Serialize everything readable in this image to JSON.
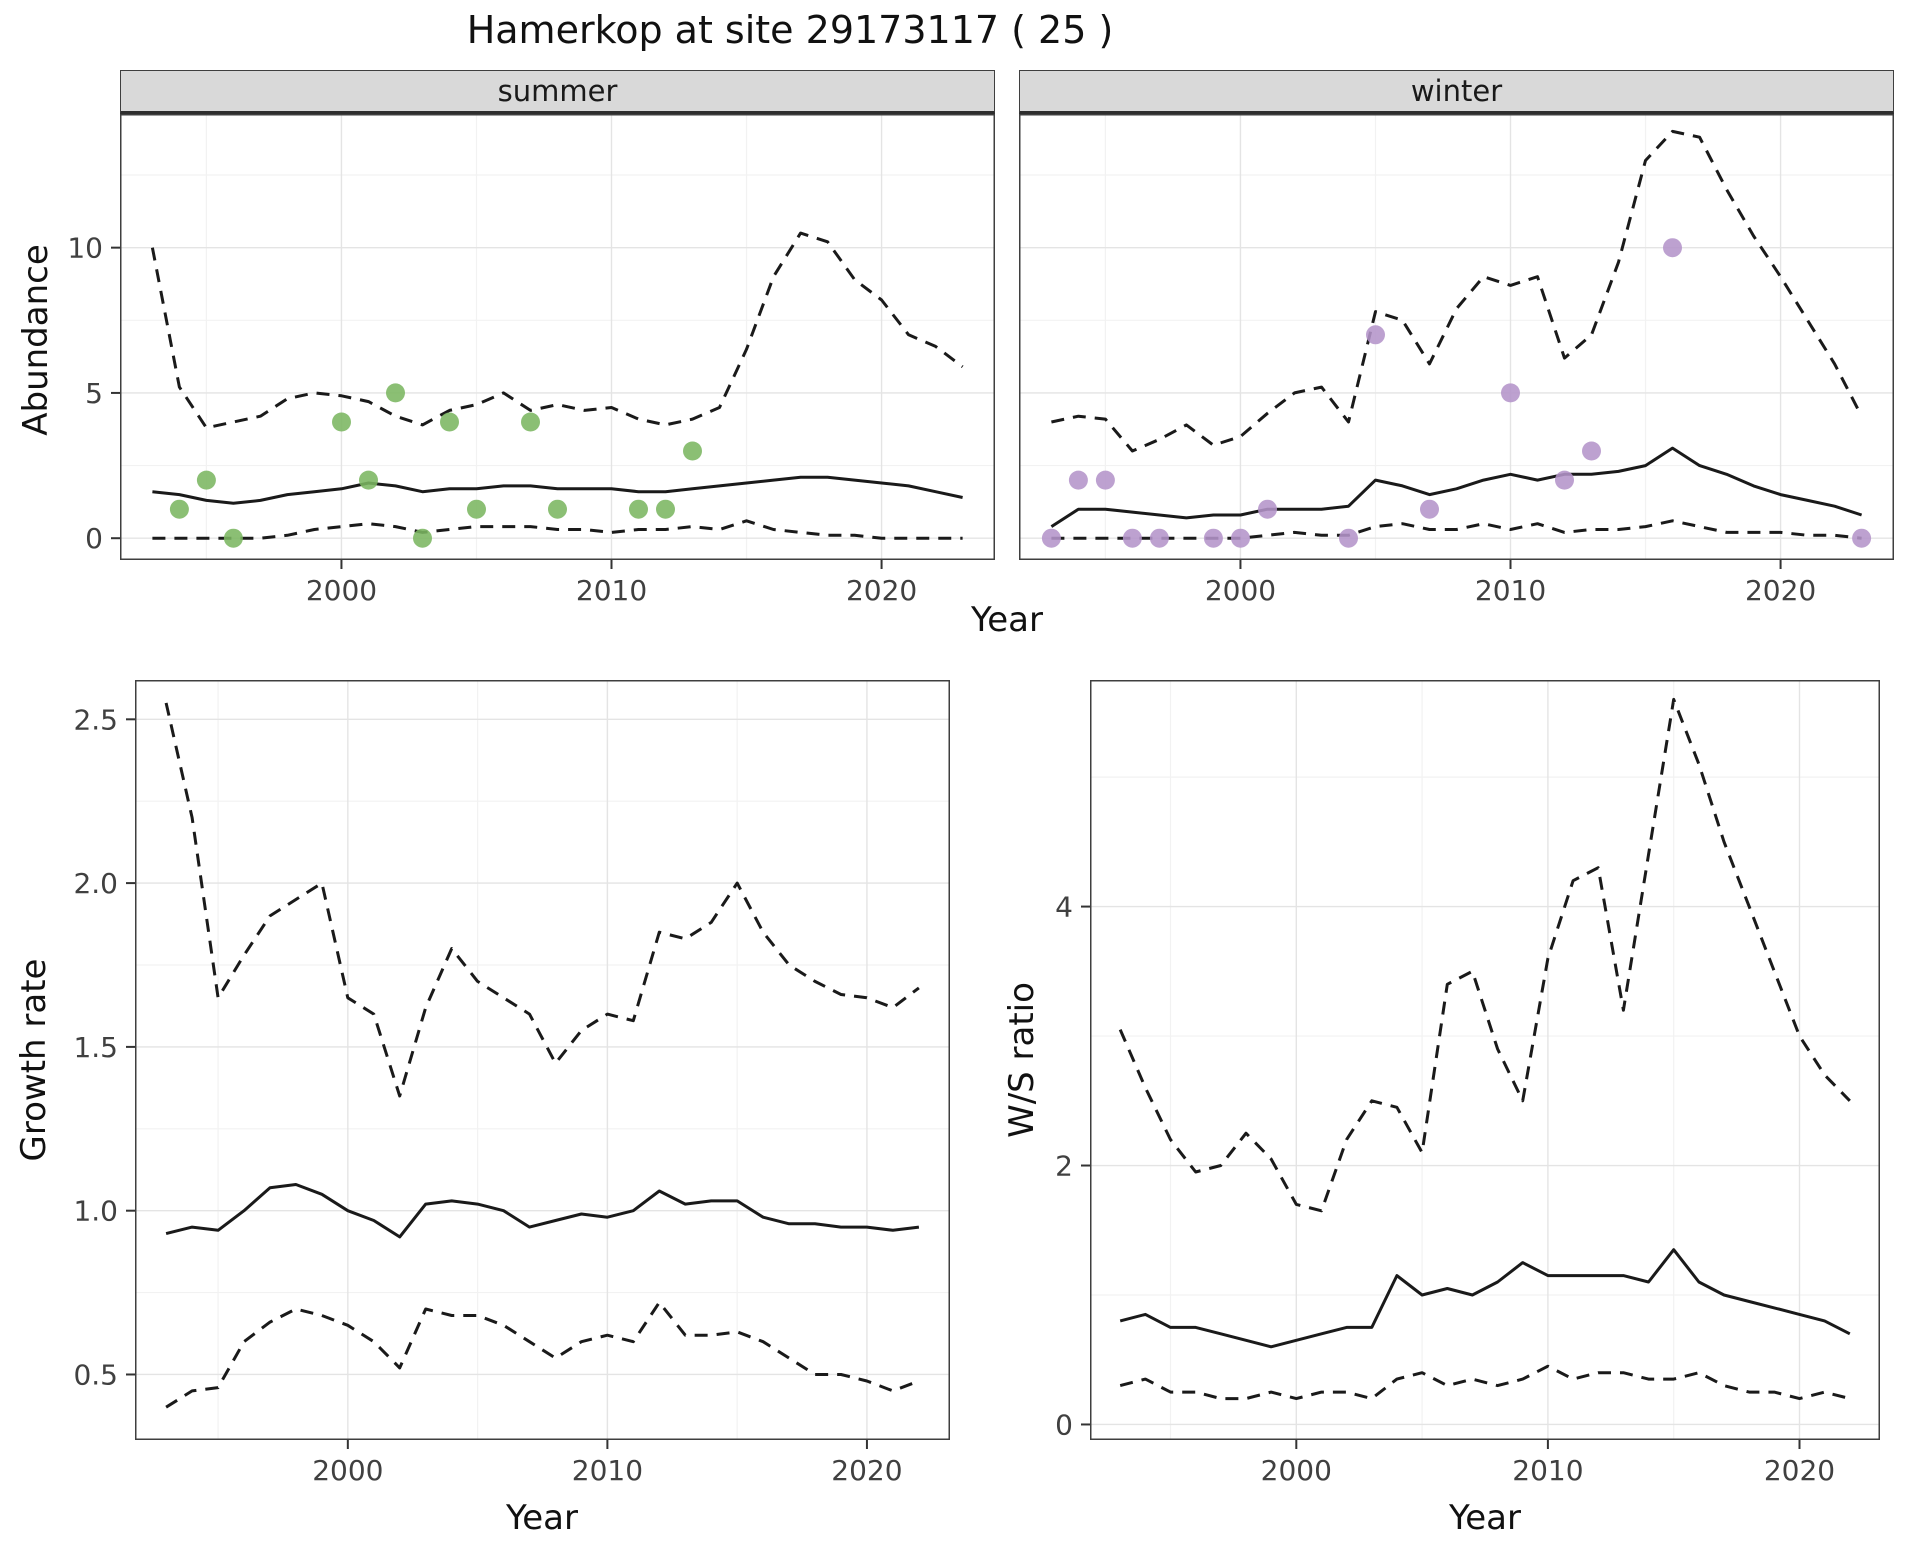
{
  "title": "Hamerkop at site 29173117 ( 25 )",
  "chart_data": [
    {
      "id": "abundance-summer",
      "type": "line",
      "facet": "summer",
      "xlabel": "Year",
      "ylabel": "Abundance",
      "xlim": [
        1991.8,
        2024.2
      ],
      "ylim": [
        -0.75,
        14.6
      ],
      "xticks": [
        2000,
        2010,
        2020
      ],
      "xticklabels": [
        "2000",
        "2010",
        "2020"
      ],
      "yticks": [
        0,
        5,
        10
      ],
      "yticklabels": [
        "0",
        "5",
        "10"
      ],
      "line_color": "#1a1a1a",
      "x": [
        1993,
        1994,
        1995,
        1996,
        1997,
        1998,
        1999,
        2000,
        2001,
        2002,
        2003,
        2004,
        2005,
        2006,
        2007,
        2008,
        2009,
        2010,
        2011,
        2012,
        2013,
        2014,
        2015,
        2016,
        2017,
        2018,
        2019,
        2020,
        2021,
        2022,
        2023
      ],
      "series": [
        {
          "name": "median",
          "style": "solid",
          "values": [
            1.6,
            1.5,
            1.3,
            1.2,
            1.3,
            1.5,
            1.6,
            1.7,
            1.9,
            1.8,
            1.6,
            1.7,
            1.7,
            1.8,
            1.8,
            1.7,
            1.7,
            1.7,
            1.6,
            1.6,
            1.7,
            1.8,
            1.9,
            2.0,
            2.1,
            2.1,
            2.0,
            1.9,
            1.8,
            1.6,
            1.4
          ]
        },
        {
          "name": "upper-ci",
          "style": "dashed",
          "values": [
            10.0,
            5.2,
            3.8,
            4.0,
            4.2,
            4.8,
            5.0,
            4.9,
            4.7,
            4.2,
            3.9,
            4.4,
            4.6,
            5.0,
            4.4,
            4.6,
            4.4,
            4.5,
            4.1,
            3.9,
            4.1,
            4.5,
            6.5,
            9.0,
            10.5,
            10.2,
            8.9,
            8.2,
            7.0,
            6.6,
            5.9
          ]
        },
        {
          "name": "lower-ci",
          "style": "dashed",
          "values": [
            0,
            0,
            0,
            0,
            0,
            0.1,
            0.3,
            0.4,
            0.5,
            0.4,
            0.2,
            0.3,
            0.4,
            0.4,
            0.4,
            0.3,
            0.3,
            0.2,
            0.3,
            0.3,
            0.4,
            0.3,
            0.6,
            0.3,
            0.2,
            0.1,
            0.1,
            0,
            0,
            0,
            0
          ]
        }
      ],
      "points": {
        "name": "observed-counts-summer",
        "color": "#7bb661",
        "x": [
          1994,
          1995,
          1996,
          2000,
          2001,
          2002,
          2003,
          2004,
          2005,
          2007,
          2008,
          2011,
          2012,
          2013
        ],
        "y": [
          1,
          2,
          0,
          4,
          2,
          5,
          0,
          4,
          1,
          4,
          1,
          1,
          1,
          3
        ]
      }
    },
    {
      "id": "abundance-winter",
      "type": "line",
      "facet": "winter",
      "xlabel": "Year",
      "ylabel": "Abundance",
      "xlim": [
        1991.8,
        2024.2
      ],
      "ylim": [
        -0.75,
        14.6
      ],
      "xticks": [
        2000,
        2010,
        2020
      ],
      "xticklabels": [
        "2000",
        "2010",
        "2020"
      ],
      "yticks": [
        0,
        5,
        10
      ],
      "yticklabels": [
        "0",
        "5",
        "10"
      ],
      "line_color": "#1a1a1a",
      "x": [
        1993,
        1994,
        1995,
        1996,
        1997,
        1998,
        1999,
        2000,
        2001,
        2002,
        2003,
        2004,
        2005,
        2006,
        2007,
        2008,
        2009,
        2010,
        2011,
        2012,
        2013,
        2014,
        2015,
        2016,
        2017,
        2018,
        2019,
        2020,
        2021,
        2022,
        2023
      ],
      "series": [
        {
          "name": "median",
          "style": "solid",
          "values": [
            0.4,
            1.0,
            1.0,
            0.9,
            0.8,
            0.7,
            0.8,
            0.8,
            1.0,
            1.0,
            1.0,
            1.1,
            2.0,
            1.8,
            1.5,
            1.7,
            2.0,
            2.2,
            2.0,
            2.2,
            2.2,
            2.3,
            2.5,
            3.1,
            2.5,
            2.2,
            1.8,
            1.5,
            1.3,
            1.1,
            0.8
          ]
        },
        {
          "name": "upper-ci",
          "style": "dashed",
          "values": [
            4.0,
            4.2,
            4.1,
            3.0,
            3.4,
            3.9,
            3.2,
            3.5,
            4.3,
            5.0,
            5.2,
            4.0,
            7.8,
            7.5,
            6.0,
            7.9,
            9.0,
            8.7,
            9.0,
            6.2,
            7.0,
            9.5,
            13.0,
            14.0,
            13.8,
            12.0,
            10.4,
            9.0,
            7.5,
            6.0,
            4.2
          ]
        },
        {
          "name": "lower-ci",
          "style": "dashed",
          "values": [
            0,
            0,
            0,
            0,
            0,
            0,
            0,
            0,
            0.1,
            0.2,
            0.1,
            0.1,
            0.4,
            0.5,
            0.3,
            0.3,
            0.5,
            0.3,
            0.5,
            0.2,
            0.3,
            0.3,
            0.4,
            0.6,
            0.4,
            0.2,
            0.2,
            0.2,
            0.1,
            0.1,
            0
          ]
        }
      ],
      "points": {
        "name": "observed-counts-winter",
        "color": "#b494c9",
        "x": [
          1993,
          1994,
          1995,
          1996,
          1997,
          1999,
          2000,
          2001,
          2004,
          2005,
          2007,
          2010,
          2012,
          2013,
          2016,
          2023
        ],
        "y": [
          0,
          2,
          2,
          0,
          0,
          0,
          0,
          1,
          0,
          7,
          1,
          5,
          2,
          3,
          10,
          0
        ]
      }
    },
    {
      "id": "growth-rate",
      "type": "line",
      "facet": "",
      "xlabel": "Year",
      "ylabel": "Growth rate",
      "xlim": [
        1991.8,
        2023.2
      ],
      "ylim": [
        0.3,
        2.62
      ],
      "xticks": [
        2000,
        2010,
        2020
      ],
      "xticklabels": [
        "2000",
        "2010",
        "2020"
      ],
      "yticks": [
        0.5,
        1.0,
        1.5,
        2.0,
        2.5
      ],
      "yticklabels": [
        "0.5",
        "1.0",
        "1.5",
        "2.0",
        "2.5"
      ],
      "line_color": "#1a1a1a",
      "x": [
        1993,
        1994,
        1995,
        1996,
        1997,
        1998,
        1999,
        2000,
        2001,
        2002,
        2003,
        2004,
        2005,
        2006,
        2007,
        2008,
        2009,
        2010,
        2011,
        2012,
        2013,
        2014,
        2015,
        2016,
        2017,
        2018,
        2019,
        2020,
        2021,
        2022
      ],
      "series": [
        {
          "name": "median",
          "style": "solid",
          "values": [
            0.93,
            0.95,
            0.94,
            1.0,
            1.07,
            1.08,
            1.05,
            1.0,
            0.97,
            0.92,
            1.02,
            1.03,
            1.02,
            1.0,
            0.95,
            0.97,
            0.99,
            0.98,
            1.0,
            1.06,
            1.02,
            1.03,
            1.03,
            0.98,
            0.96,
            0.96,
            0.95,
            0.95,
            0.94,
            0.95
          ]
        },
        {
          "name": "upper-ci",
          "style": "dashed",
          "values": [
            2.55,
            2.2,
            1.65,
            1.78,
            1.9,
            1.95,
            2.0,
            1.65,
            1.6,
            1.35,
            1.62,
            1.8,
            1.7,
            1.65,
            1.6,
            1.45,
            1.55,
            1.6,
            1.58,
            1.85,
            1.83,
            1.88,
            2.0,
            1.85,
            1.75,
            1.7,
            1.66,
            1.65,
            1.62,
            1.68
          ]
        },
        {
          "name": "lower-ci",
          "style": "dashed",
          "values": [
            0.4,
            0.45,
            0.46,
            0.6,
            0.66,
            0.7,
            0.68,
            0.65,
            0.6,
            0.52,
            0.7,
            0.68,
            0.68,
            0.65,
            0.6,
            0.55,
            0.6,
            0.62,
            0.6,
            0.72,
            0.62,
            0.62,
            0.63,
            0.6,
            0.55,
            0.5,
            0.5,
            0.48,
            0.45,
            0.48
          ]
        }
      ]
    },
    {
      "id": "ws-ratio",
      "type": "line",
      "facet": "",
      "xlabel": "Year",
      "ylabel": "W/S ratio",
      "xlim": [
        1991.8,
        2023.2
      ],
      "ylim": [
        -0.12,
        5.75
      ],
      "xticks": [
        2000,
        2010,
        2020
      ],
      "xticklabels": [
        "2000",
        "2010",
        "2020"
      ],
      "yticks": [
        0,
        2,
        4
      ],
      "yticklabels": [
        "0",
        "2",
        "4"
      ],
      "line_color": "#1a1a1a",
      "x": [
        1993,
        1994,
        1995,
        1996,
        1997,
        1998,
        1999,
        2000,
        2001,
        2002,
        2003,
        2004,
        2005,
        2006,
        2007,
        2008,
        2009,
        2010,
        2011,
        2012,
        2013,
        2014,
        2015,
        2016,
        2017,
        2018,
        2019,
        2020,
        2021,
        2022
      ],
      "series": [
        {
          "name": "median",
          "style": "solid",
          "values": [
            0.8,
            0.85,
            0.75,
            0.75,
            0.7,
            0.65,
            0.6,
            0.65,
            0.7,
            0.75,
            0.75,
            1.15,
            1.0,
            1.05,
            1.0,
            1.1,
            1.25,
            1.15,
            1.15,
            1.15,
            1.15,
            1.1,
            1.35,
            1.1,
            1.0,
            0.95,
            0.9,
            0.85,
            0.8,
            0.7
          ]
        },
        {
          "name": "upper-ci",
          "style": "dashed",
          "values": [
            3.05,
            2.6,
            2.2,
            1.95,
            2.0,
            2.25,
            2.05,
            1.7,
            1.65,
            2.2,
            2.5,
            2.45,
            2.1,
            3.4,
            3.5,
            2.9,
            2.5,
            3.6,
            4.2,
            4.3,
            3.2,
            4.4,
            5.6,
            5.1,
            4.5,
            4.0,
            3.5,
            3.0,
            2.7,
            2.5
          ]
        },
        {
          "name": "lower-ci",
          "style": "dashed",
          "values": [
            0.3,
            0.35,
            0.25,
            0.25,
            0.2,
            0.2,
            0.25,
            0.2,
            0.25,
            0.25,
            0.2,
            0.35,
            0.4,
            0.3,
            0.35,
            0.3,
            0.35,
            0.45,
            0.35,
            0.4,
            0.4,
            0.35,
            0.35,
            0.4,
            0.3,
            0.25,
            0.25,
            0.2,
            0.25,
            0.2
          ]
        }
      ]
    }
  ]
}
